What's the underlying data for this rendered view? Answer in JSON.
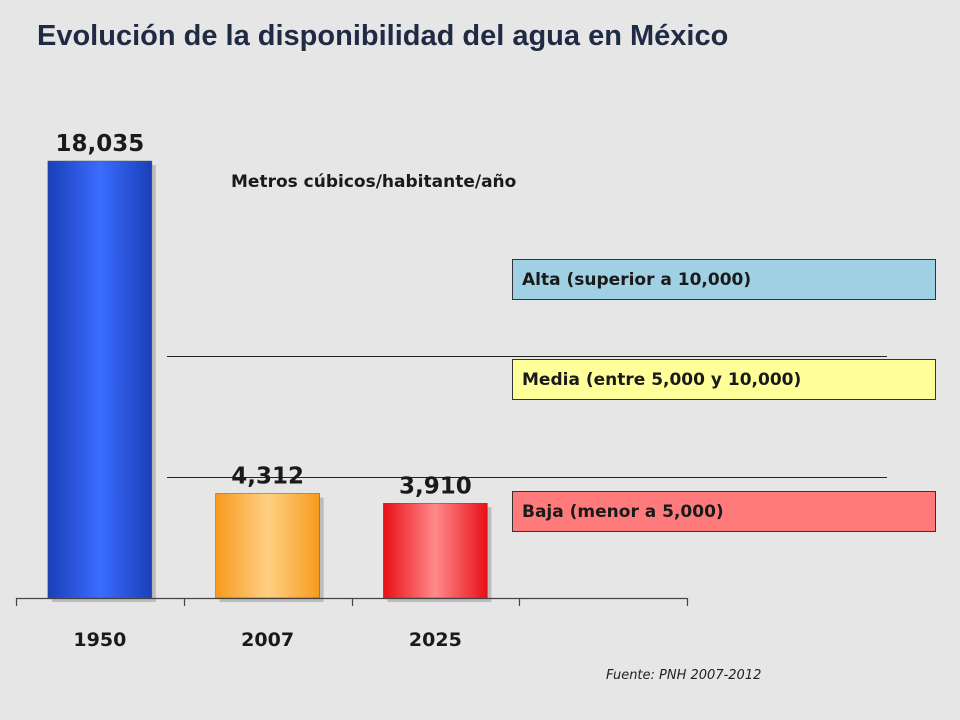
{
  "chart_data": {
    "type": "bar",
    "title": "Evolución de la disponibilidad del agua en México",
    "ylabel": "Metros cúbicos/habitante/año",
    "categories": [
      "1950",
      "2007",
      "2025"
    ],
    "values": [
      18035,
      4312,
      3910
    ],
    "value_labels": [
      "18,035",
      "4,312",
      "3,910"
    ],
    "bar_colors": [
      "#2f5fe8",
      "#ffb54a",
      "#ff3b3b"
    ],
    "ylim": [
      0,
      18035
    ],
    "threshold_lines": [
      10000,
      5000
    ],
    "bands": [
      {
        "label": "Alta (superior a 10,000)",
        "color": "#9fd0e4"
      },
      {
        "label": "Media (entre 5,000 y 10,000)",
        "color": "#ffff99"
      },
      {
        "label": "Baja (menor a 5,000)",
        "color": "#ff7b7b"
      }
    ],
    "grid": false,
    "source": "Fuente: PNH 2007-2012"
  }
}
